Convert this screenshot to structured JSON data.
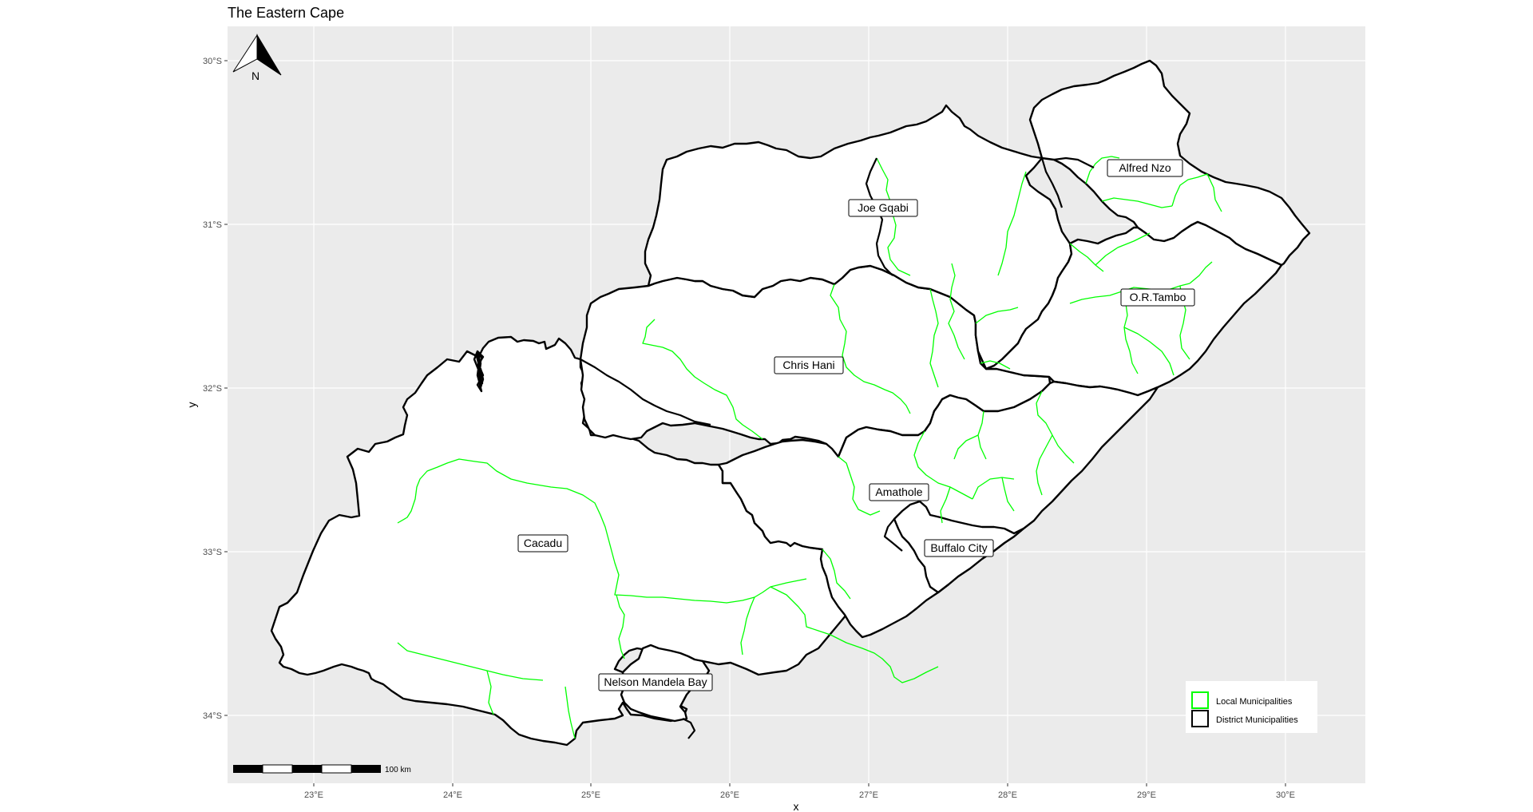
{
  "title": "The Eastern Cape",
  "axes": {
    "x_label": "x",
    "y_label": "y",
    "x_ticks": [
      "23°E",
      "24°E",
      "25°E",
      "26°E",
      "27°E",
      "28°E",
      "29°E",
      "30°E"
    ],
    "y_ticks": [
      "30°S",
      "31°S",
      "32°S",
      "33°S",
      "34°S"
    ]
  },
  "north_arrow": {
    "label": "N"
  },
  "scale_bar": {
    "label": "100 km"
  },
  "districts": [
    {
      "name": "Alfred Nzo"
    },
    {
      "name": "Joe Gqabi"
    },
    {
      "name": "O.R.Tambo"
    },
    {
      "name": "Chris Hani"
    },
    {
      "name": "Amathole"
    },
    {
      "name": "Buffalo City"
    },
    {
      "name": "Cacadu"
    },
    {
      "name": "Nelson Mandela Bay"
    }
  ],
  "legend": {
    "items": [
      {
        "label": "Local Municipalities",
        "color": "#00ff00"
      },
      {
        "label": "District Municipalities",
        "color": "#000000"
      }
    ]
  },
  "colors": {
    "panel": "#ebebeb",
    "land": "#ffffff",
    "local_border": "#00ff00",
    "district_border": "#000000"
  }
}
